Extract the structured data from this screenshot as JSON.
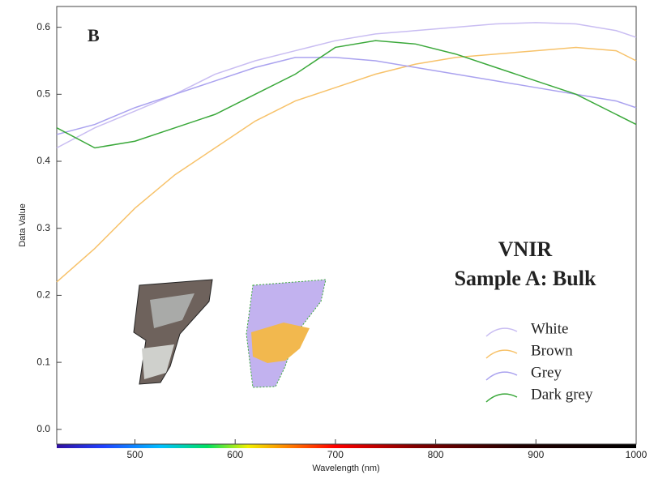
{
  "chart_data": {
    "type": "line",
    "panel_label": "B",
    "annotations": [
      "VNIR",
      "Sample A: Bulk"
    ],
    "xlabel": "Wavelength (nm)",
    "ylabel": "Data Value",
    "x": [
      422,
      460,
      500,
      540,
      580,
      620,
      660,
      700,
      740,
      780,
      820,
      860,
      900,
      940,
      980,
      1000
    ],
    "series": [
      {
        "name": "White",
        "color": "#c9bdf2",
        "values": [
          0.42,
          0.45,
          0.475,
          0.5,
          0.53,
          0.55,
          0.565,
          0.58,
          0.59,
          0.595,
          0.6,
          0.605,
          0.607,
          0.605,
          0.595,
          0.585
        ]
      },
      {
        "name": "Brown",
        "color": "#f7c26a",
        "values": [
          0.22,
          0.27,
          0.33,
          0.38,
          0.42,
          0.46,
          0.49,
          0.51,
          0.53,
          0.545,
          0.555,
          0.56,
          0.565,
          0.57,
          0.565,
          0.55
        ]
      },
      {
        "name": "Grey",
        "color": "#aaa2ef",
        "values": [
          0.44,
          0.455,
          0.48,
          0.5,
          0.52,
          0.54,
          0.555,
          0.555,
          0.55,
          0.54,
          0.53,
          0.52,
          0.51,
          0.5,
          0.49,
          0.48
        ]
      },
      {
        "name": "Dark grey",
        "color": "#3aa83a",
        "values": [
          0.45,
          0.42,
          0.43,
          0.45,
          0.47,
          0.5,
          0.53,
          0.57,
          0.58,
          0.575,
          0.56,
          0.54,
          0.52,
          0.5,
          0.47,
          0.455
        ]
      }
    ],
    "xlim": [
      422,
      1000
    ],
    "xticks": [
      500,
      600,
      700,
      800,
      900,
      1000
    ],
    "ylim": [
      -0.022,
      0.631
    ],
    "yticks": [
      {
        "value": 0,
        "label": "0.0"
      },
      0.1,
      0.2,
      0.3,
      0.4,
      0.5,
      0.6
    ],
    "legend": "lower right",
    "grid": false
  }
}
